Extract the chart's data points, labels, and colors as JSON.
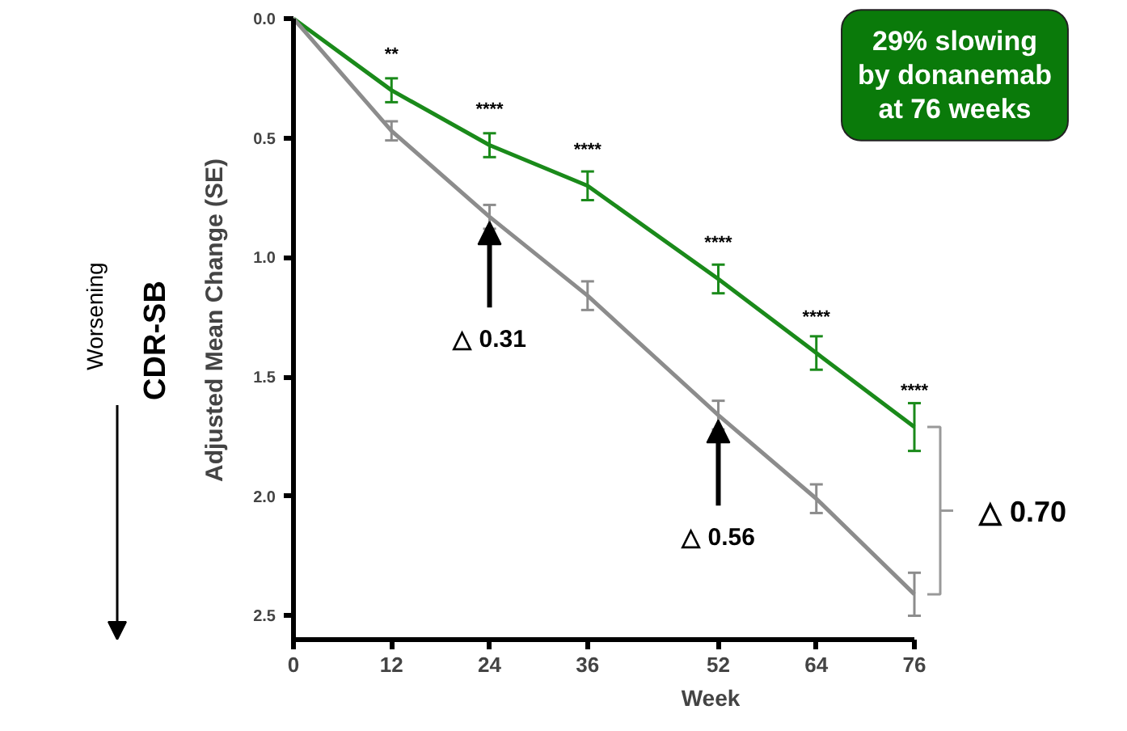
{
  "chart_data": {
    "type": "line",
    "xlabel": "Week",
    "ylabel": "Adjusted Mean Change (SE)",
    "x": [
      0,
      12,
      24,
      36,
      52,
      64,
      76
    ],
    "xlim": [
      0,
      76
    ],
    "xticks": [
      0,
      12,
      24,
      36,
      52,
      64,
      76
    ],
    "ylim": [
      2.6,
      0
    ],
    "yticks": [
      {
        "value": 0,
        "label": "0.0"
      },
      0.5,
      {
        "value": 1,
        "label": "1.0"
      },
      1.5,
      {
        "value": 2,
        "label": "2.0"
      },
      2.5
    ],
    "grid": false,
    "marker": "none",
    "line_style": "solid",
    "series": [
      {
        "color": "#1a8a1a",
        "values": [
          0,
          0.3,
          0.53,
          0.7,
          1.09,
          1.4,
          1.71
        ],
        "errors": [
          null,
          0.05,
          0.05,
          0.06,
          0.06,
          0.07,
          0.1
        ]
      },
      {
        "color": "#8c8c8c",
        "values": [
          0,
          0.47,
          0.83,
          1.16,
          1.66,
          2.01,
          2.41
        ],
        "errors": [
          null,
          0.04,
          0.05,
          0.06,
          0.06,
          0.06,
          0.09
        ]
      }
    ],
    "annotations": [
      "29% slowing\nby donanemab\nat 76 weeks",
      "CDR-SB",
      "Worsening",
      "△ 0.70",
      {
        "text": "△ 0.31",
        "x": 24,
        "y": 0.83
      },
      {
        "text": "△ 0.56",
        "x": 52,
        "y": 1.66
      },
      {
        "text": "**",
        "x": 12,
        "y": 0.3
      },
      {
        "text": "****",
        "x": 24,
        "y": 0.53
      },
      {
        "text": "****",
        "x": 36,
        "y": 0.7
      },
      {
        "text": "****",
        "x": 52,
        "y": 1.09
      },
      {
        "text": "****",
        "x": 64,
        "y": 1.4
      },
      {
        "text": "****",
        "x": 76,
        "y": 1.71
      }
    ]
  }
}
